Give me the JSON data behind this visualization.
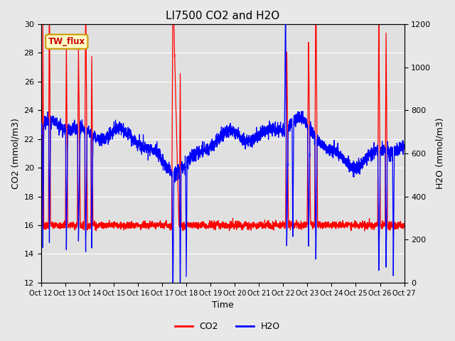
{
  "title": "LI7500 CO2 and H2O",
  "xlabel": "Time",
  "ylabel_left": "CO2 (mmol/m3)",
  "ylabel_right": "H2O (mmol/m3)",
  "ylim_left": [
    12,
    30
  ],
  "ylim_right": [
    0,
    1200
  ],
  "yticks_left": [
    12,
    14,
    16,
    18,
    20,
    22,
    24,
    26,
    28,
    30
  ],
  "yticks_right": [
    0,
    200,
    400,
    600,
    800,
    1000,
    1200
  ],
  "x_tick_labels": [
    "Oct 12",
    "Oct 13",
    "Oct 14",
    "Oct 15",
    "Oct 16",
    "Oct 17",
    "Oct 18",
    "Oct 19",
    "Oct 20",
    "Oct 21",
    "Oct 22",
    "Oct 23",
    "Oct 24",
    "Oct 25",
    "Oct 26",
    "Oct 27"
  ],
  "annotation_text": "TW_flux",
  "annotation_bg": "#ffffcc",
  "annotation_border": "#cc9900",
  "co2_color": "#ff0000",
  "h2o_color": "#0000ff",
  "bg_color": "#e8e8e8",
  "plot_bg": "#e0e0e0",
  "grid_color": "#ffffff",
  "linewidth": 0.9,
  "title_fontsize": 11,
  "figsize": [
    6.4,
    4.8
  ],
  "dpi": 100
}
